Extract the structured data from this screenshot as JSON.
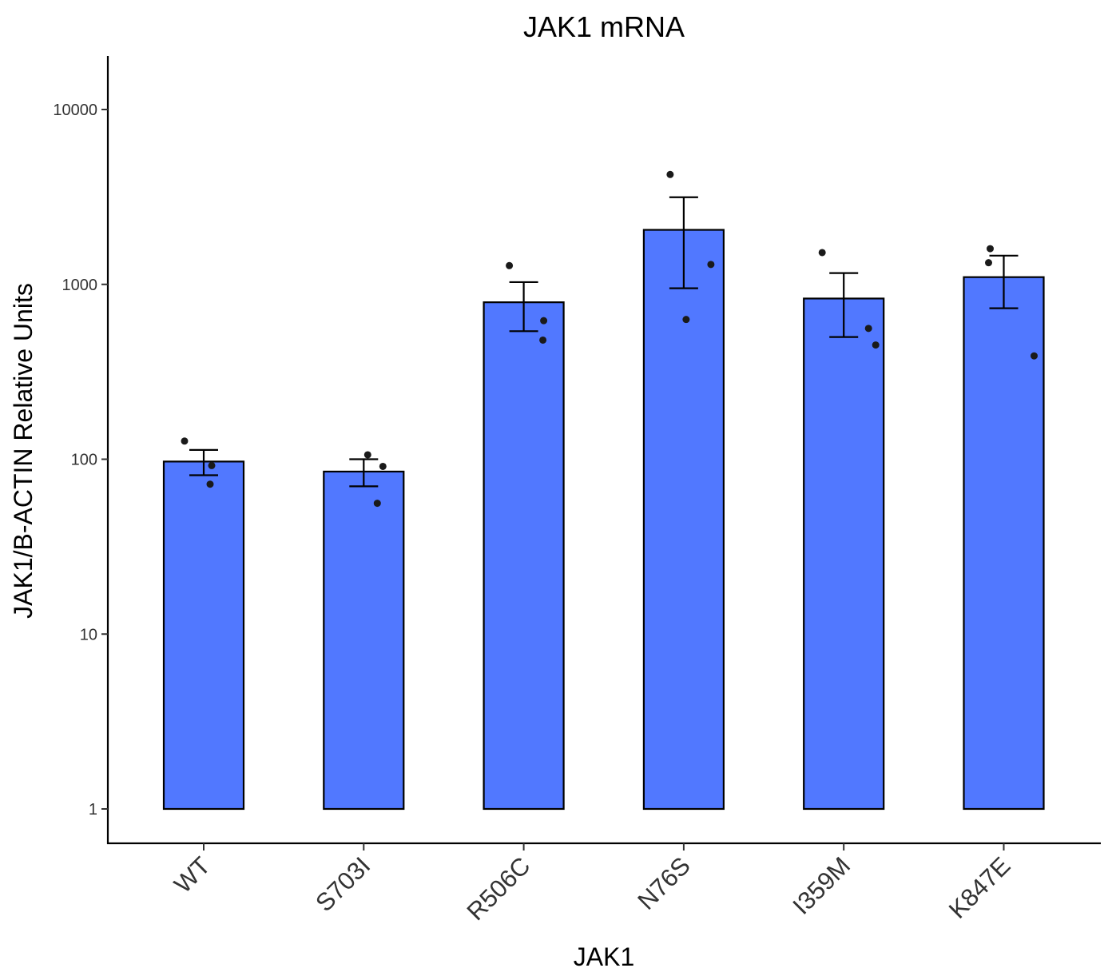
{
  "chart_data": {
    "type": "bar",
    "title": "JAK1 mRNA",
    "xlabel": "JAK1",
    "ylabel": "JAK1/B-ACTIN Relative Units",
    "yscale": "log10",
    "ylim": [
      0.5,
      20000
    ],
    "yticks": [
      1,
      10,
      100,
      1000,
      10000
    ],
    "ytick_labels": [
      "1",
      "10",
      "100",
      "1000",
      "10000"
    ],
    "categories": [
      "WT",
      "S703I",
      "R506C",
      "N76S",
      "I359M",
      "K847E"
    ],
    "values": [
      97,
      85,
      790,
      2050,
      830,
      1100
    ],
    "error_low": [
      81,
      70,
      540,
      950,
      500,
      730
    ],
    "error_high": [
      113,
      100,
      1030,
      3150,
      1160,
      1460
    ],
    "points": [
      [
        127,
        92,
        72
      ],
      [
        106,
        91,
        56
      ],
      [
        1280,
        620,
        480
      ],
      [
        4250,
        1300,
        630
      ],
      [
        1520,
        560,
        450
      ],
      [
        1600,
        1330,
        390
      ]
    ],
    "grid": false,
    "legend": "none",
    "bar_color": "#5178FF",
    "point_color": "#1a1a1a"
  }
}
